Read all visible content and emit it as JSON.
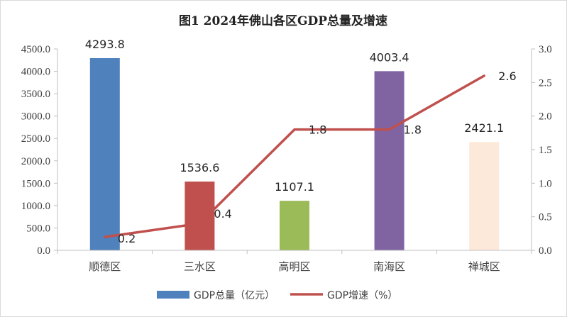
{
  "chart_data": {
    "type": "bar",
    "title": "图1  2024年佛山各区GDP总量及增速",
    "categories": [
      "顺德区",
      "三水区",
      "高明区",
      "南海区",
      "禅城区"
    ],
    "series": [
      {
        "name": "GDP总量（亿元）",
        "type": "bar",
        "axis": "left",
        "values": [
          4293.8,
          1536.6,
          1107.1,
          4003.4,
          2421.1
        ],
        "value_labels": [
          "4293.8",
          "1536.6",
          "1107.1",
          "4003.4",
          "2421.1"
        ],
        "colors": [
          "#4f81bd",
          "#c0504d",
          "#9bbb59",
          "#8064a2",
          "#fde9d9"
        ]
      },
      {
        "name": "GDP增速（%）",
        "type": "line",
        "axis": "right",
        "values": [
          0.2,
          0.4,
          1.8,
          1.8,
          2.6
        ],
        "value_labels": [
          "0.2",
          "0.4",
          "1.8",
          "1.8",
          "2.6"
        ],
        "color": "#c0504d"
      }
    ],
    "y_left": {
      "ylim": [
        0,
        4500
      ],
      "ticks": [
        0,
        500,
        1000,
        1500,
        2000,
        2500,
        3000,
        3500,
        4000,
        4500
      ],
      "tick_labels": [
        "0.0",
        "500.0",
        "1000.0",
        "1500.0",
        "2000.0",
        "2500.0",
        "3000.0",
        "3500.0",
        "4000.0",
        "4500.0"
      ]
    },
    "y_right": {
      "ylim": [
        0,
        3
      ],
      "ticks": [
        0,
        0.5,
        1,
        1.5,
        2,
        2.5,
        3
      ],
      "tick_labels": [
        "0.0",
        "0.5",
        "1.0",
        "1.5",
        "2.0",
        "2.5",
        "3.0"
      ]
    },
    "grid": false,
    "legend_position": "bottom"
  }
}
